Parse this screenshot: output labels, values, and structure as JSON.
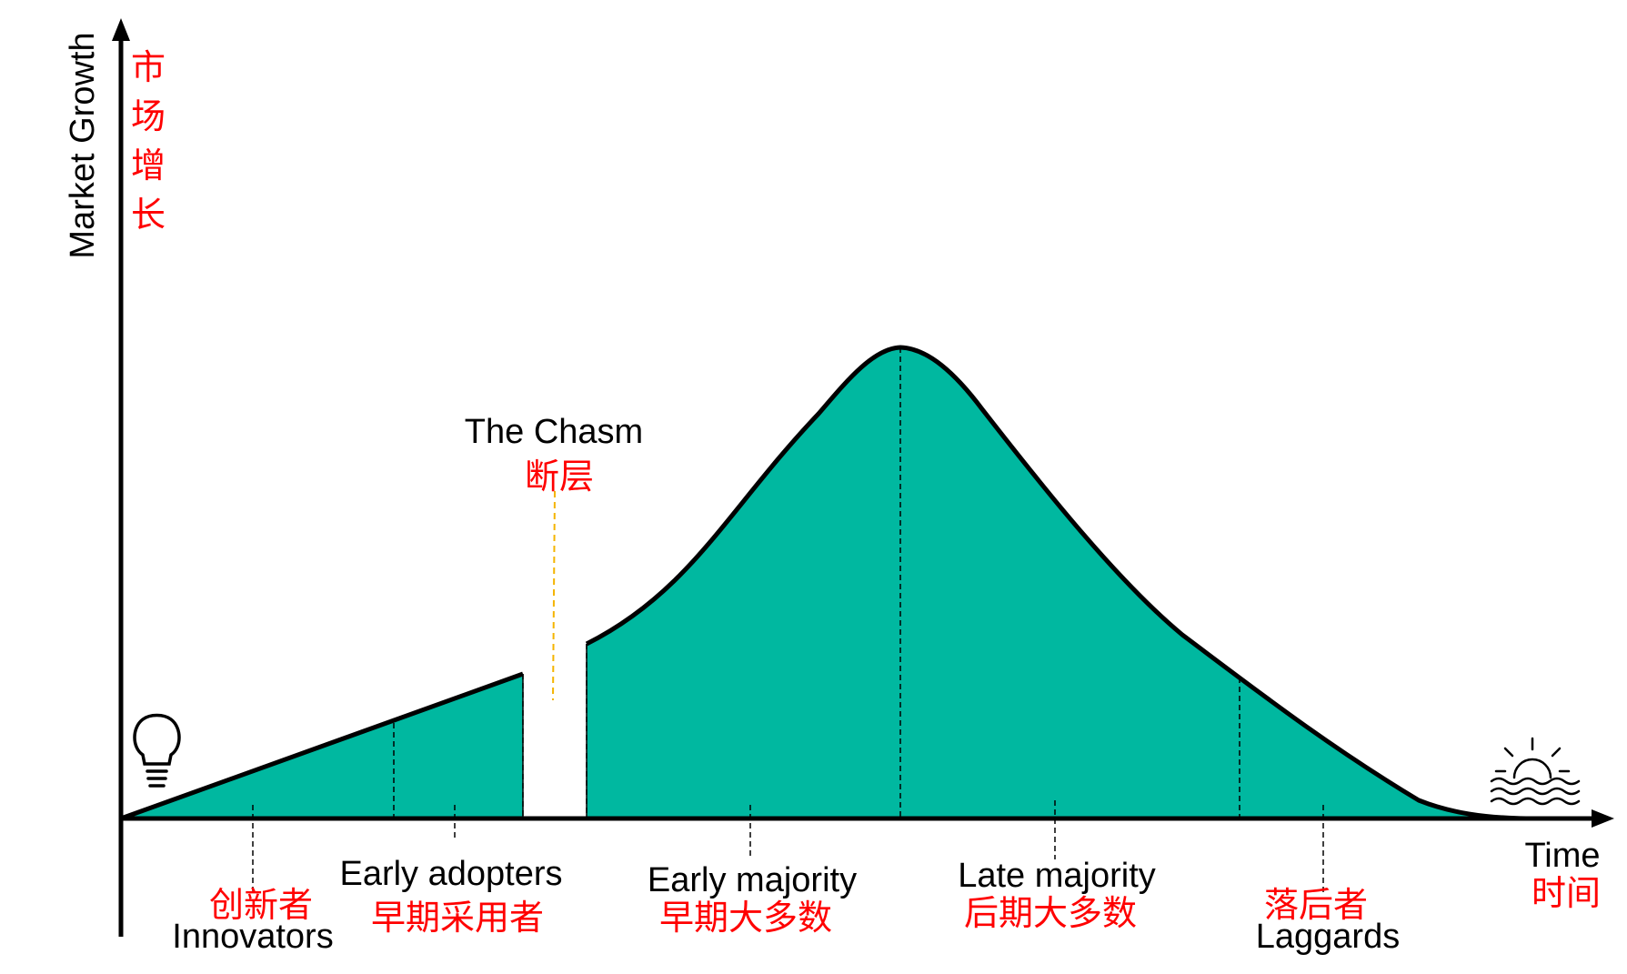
{
  "colors": {
    "fill": "#00b8a0",
    "curve": "#000000",
    "chinese_text": "#ff0000",
    "chasm_line": "#f4b400"
  },
  "axes": {
    "y_label": "Market Growth",
    "y_label_zh": [
      "市",
      "场",
      "增",
      "长"
    ],
    "x_label": "Time",
    "x_label_zh": "时间"
  },
  "chasm": {
    "label": "The Chasm",
    "label_zh": "断层"
  },
  "segments": [
    {
      "label": "Innovators",
      "label_zh": "创新者"
    },
    {
      "label": "Early adopters",
      "label_zh": "早期采用者"
    },
    {
      "label": "Early majority",
      "label_zh": "早期大多数"
    },
    {
      "label": "Late majority",
      "label_zh": "后期大多数"
    },
    {
      "label": "Laggards",
      "label_zh": "落后者"
    }
  ],
  "icons": {
    "start": "lightbulb-icon",
    "end": "sunset-icon"
  }
}
